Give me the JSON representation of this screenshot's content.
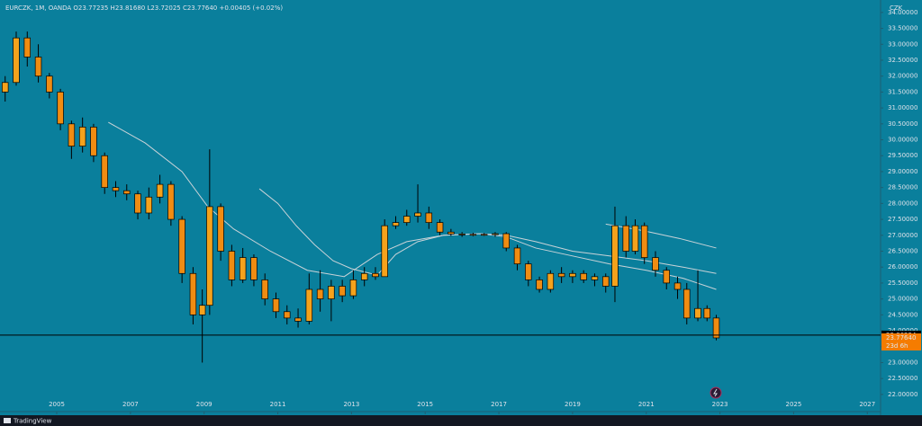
{
  "chart_data": {
    "type": "candlestick",
    "title": "EURCZK, 1M, OANDA  O23.77235  H23.81680  L23.72025  C23.77640  +0.00405 (+0.02%)",
    "currency": "CZK",
    "footer": "TradingView",
    "background": "#0a7f9c",
    "up_color": "#f5a21c",
    "down_color": "#f08c12",
    "outline_color": "#000000",
    "x": [
      2003.6,
      2003.9,
      2004.2,
      2004.5,
      2004.8,
      2005.1,
      2005.4,
      2005.7,
      2006.0,
      2006.3,
      2006.6,
      2006.9,
      2007.2,
      2007.5,
      2007.8,
      2008.1,
      2008.4,
      2008.7,
      2008.95,
      2009.15,
      2009.45,
      2009.75,
      2010.05,
      2010.35,
      2010.65,
      2010.95,
      2011.25,
      2011.55,
      2011.85,
      2012.15,
      2012.45,
      2012.75,
      2013.05,
      2013.35,
      2013.65,
      2013.9,
      2014.2,
      2014.5,
      2014.8,
      2015.1,
      2015.4,
      2015.7,
      2016.0,
      2016.3,
      2016.6,
      2016.9,
      2017.2,
      2017.5,
      2017.8,
      2018.1,
      2018.4,
      2018.7,
      2019.0,
      2019.3,
      2019.6,
      2019.9,
      2020.15,
      2020.45,
      2020.7,
      2020.95,
      2021.25,
      2021.55,
      2021.85,
      2022.1,
      2022.4,
      2022.65,
      2022.9
    ],
    "open": [
      31.5,
      31.8,
      33.2,
      32.6,
      32.0,
      31.5,
      30.5,
      29.8,
      30.4,
      29.5,
      28.5,
      28.4,
      28.3,
      27.7,
      28.2,
      28.6,
      27.5,
      25.8,
      24.5,
      24.8,
      27.9,
      26.5,
      25.6,
      26.3,
      25.6,
      25.0,
      24.6,
      24.4,
      24.3,
      25.3,
      25.0,
      25.4,
      25.1,
      25.6,
      25.8,
      25.7,
      27.3,
      27.4,
      27.6,
      27.7,
      27.4,
      27.1,
      27.04,
      27.02,
      27.03,
      27.02,
      27.05,
      26.6,
      26.1,
      25.6,
      25.3,
      25.8,
      25.7,
      25.8,
      25.6,
      25.7,
      25.4,
      27.3,
      26.5,
      27.3,
      26.3,
      25.9,
      25.5,
      25.3,
      24.4,
      24.7,
      24.4
    ],
    "high": [
      32.0,
      33.4,
      33.4,
      33.0,
      32.1,
      31.6,
      30.6,
      30.7,
      30.5,
      29.6,
      28.7,
      28.6,
      28.4,
      28.5,
      28.9,
      28.7,
      27.6,
      26.0,
      25.3,
      29.7,
      28.0,
      26.7,
      26.6,
      26.4,
      25.8,
      25.2,
      24.8,
      24.7,
      25.8,
      25.9,
      25.6,
      25.6,
      25.9,
      26.0,
      26.0,
      27.5,
      27.6,
      27.8,
      28.6,
      27.9,
      27.5,
      27.2,
      27.1,
      27.08,
      27.07,
      27.1,
      27.1,
      26.7,
      26.2,
      25.7,
      25.9,
      26.0,
      25.9,
      25.9,
      25.8,
      25.8,
      27.9,
      27.6,
      27.5,
      27.4,
      26.5,
      26.0,
      25.7,
      25.5,
      25.9,
      24.8,
      24.5
    ],
    "low": [
      31.2,
      31.7,
      32.3,
      31.8,
      31.3,
      30.3,
      29.4,
      29.6,
      29.3,
      28.3,
      28.2,
      28.1,
      27.5,
      27.5,
      28.0,
      27.3,
      25.5,
      24.2,
      23.0,
      24.5,
      26.2,
      25.4,
      25.5,
      25.4,
      24.8,
      24.4,
      24.2,
      24.1,
      24.2,
      24.6,
      24.3,
      24.9,
      25.0,
      25.4,
      25.6,
      25.7,
      27.2,
      27.3,
      27.4,
      27.2,
      27.0,
      26.98,
      26.95,
      26.97,
      26.98,
      26.95,
      26.5,
      25.9,
      25.4,
      25.2,
      25.2,
      25.5,
      25.5,
      25.5,
      25.4,
      25.2,
      24.9,
      26.3,
      26.4,
      26.1,
      25.7,
      25.3,
      25.0,
      24.2,
      24.3,
      24.3,
      23.7
    ],
    "close": [
      31.8,
      33.2,
      32.6,
      32.0,
      31.5,
      30.5,
      29.8,
      30.4,
      29.5,
      28.5,
      28.4,
      28.3,
      27.7,
      28.2,
      28.6,
      27.5,
      25.8,
      24.5,
      24.8,
      27.9,
      26.5,
      25.6,
      26.3,
      25.6,
      25.0,
      24.6,
      24.4,
      24.3,
      25.3,
      25.0,
      25.4,
      25.1,
      25.6,
      25.8,
      25.7,
      27.3,
      27.4,
      27.6,
      27.7,
      27.4,
      27.1,
      27.04,
      27.02,
      27.03,
      27.02,
      27.05,
      26.6,
      26.1,
      25.6,
      25.3,
      25.8,
      25.7,
      25.8,
      25.6,
      25.7,
      25.4,
      27.3,
      26.5,
      27.3,
      26.3,
      25.9,
      25.5,
      25.3,
      24.4,
      24.7,
      24.4,
      23.7764
    ],
    "lines": [
      {
        "color": "#c9d3d8",
        "x": [
          2006.4,
          2007.4,
          2008.4,
          2009.1,
          2009.8,
          2010.8,
          2011.8,
          2012.8,
          2013.7,
          2014.5,
          2015.5,
          2016.5,
          2017.2,
          2018.0,
          2019.0,
          2020.0,
          2021.0,
          2022.0,
          2022.9
        ],
        "values": [
          30.55,
          29.9,
          29.0,
          27.9,
          27.2,
          26.5,
          25.9,
          25.7,
          26.4,
          26.8,
          27.0,
          27.05,
          26.95,
          26.6,
          26.35,
          26.1,
          25.9,
          25.65,
          25.3
        ]
      },
      {
        "color": "#c9d3d8",
        "x": [
          2010.5,
          2011.0,
          2011.5,
          2012.0,
          2012.5,
          2013.0,
          2013.7,
          2014.2,
          2014.8,
          2015.5,
          2016.5,
          2017.2,
          2018.0,
          2019.0,
          2020.0,
          2021.0,
          2022.0,
          2022.9
        ],
        "values": [
          28.46,
          28.0,
          27.3,
          26.7,
          26.2,
          25.95,
          25.75,
          26.4,
          26.8,
          27.0,
          27.05,
          27.0,
          26.8,
          26.5,
          26.35,
          26.2,
          26.0,
          25.8
        ]
      },
      {
        "color": "#c9d3d8",
        "x": [
          2019.9,
          2020.9,
          2021.9,
          2022.9
        ],
        "values": [
          27.35,
          27.15,
          26.9,
          26.6
        ]
      }
    ],
    "price_line": {
      "value": 23.86224,
      "label": "23.86224",
      "color": "#000000"
    },
    "last_price": {
      "value": 23.7764,
      "label": "23.77640",
      "countdown": "23d 6h",
      "color": "#f57c00"
    },
    "xlim": [
      2003.46,
      2027.36
    ],
    "xticks": [
      2005,
      2007,
      2009,
      2011,
      2013,
      2015,
      2017,
      2019,
      2021,
      2023,
      2025,
      2027
    ],
    "ylim": [
      21.46,
      34.25
    ],
    "yticks": [
      {
        "value": 22,
        "label": "22.00000"
      },
      {
        "value": 22.5,
        "label": "22.50000"
      },
      {
        "value": 23,
        "label": "23.00000"
      },
      {
        "value": 23.5,
        "label": "23.50000"
      },
      {
        "value": 24,
        "label": "24.00000"
      },
      {
        "value": 24.5,
        "label": "24.50000"
      },
      {
        "value": 25,
        "label": "25.00000"
      },
      {
        "value": 25.5,
        "label": "25.50000"
      },
      {
        "value": 26,
        "label": "26.00000"
      },
      {
        "value": 26.5,
        "label": "26.50000"
      },
      {
        "value": 27,
        "label": "27.00000"
      },
      {
        "value": 27.5,
        "label": "27.50000"
      },
      {
        "value": 28,
        "label": "28.00000"
      },
      {
        "value": 28.5,
        "label": "28.50000"
      },
      {
        "value": 29,
        "label": "29.00000"
      },
      {
        "value": 29.5,
        "label": "29.50000"
      },
      {
        "value": 30,
        "label": "30.00000"
      },
      {
        "value": 30.5,
        "label": "30.50000"
      },
      {
        "value": 31,
        "label": "31.00000"
      },
      {
        "value": 31.5,
        "label": "31.50000"
      },
      {
        "value": 32,
        "label": "32.00000"
      },
      {
        "value": 32.5,
        "label": "32.50000"
      },
      {
        "value": 33,
        "label": "33.00000"
      },
      {
        "value": 33.5,
        "label": "33.50000"
      },
      {
        "value": 34,
        "label": "34.00000"
      }
    ],
    "grid": false
  }
}
